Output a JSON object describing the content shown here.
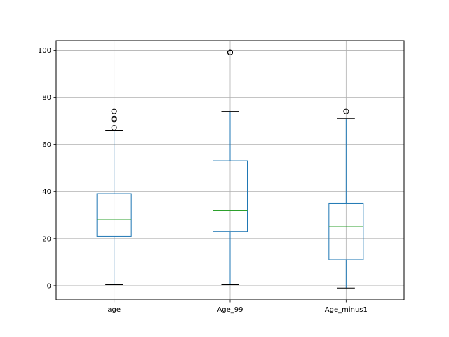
{
  "chart_data": {
    "type": "box",
    "title": "",
    "xlabel": "",
    "ylabel": "",
    "categories": [
      "age",
      "Age_99",
      "Age_minus1"
    ],
    "ylim": [
      -6,
      104
    ],
    "yticks": [
      0,
      20,
      40,
      60,
      80,
      100
    ],
    "grid": true,
    "boxes": [
      {
        "name": "age",
        "whisker_low": 0.4,
        "q1": 21,
        "median": 28,
        "q3": 39,
        "whisker_high": 66,
        "outliers": [
          67,
          70.5,
          71,
          74
        ]
      },
      {
        "name": "Age_99",
        "whisker_low": 0.4,
        "q1": 23,
        "median": 32,
        "q3": 53,
        "whisker_high": 74,
        "outliers": [
          99,
          99,
          99,
          99
        ]
      },
      {
        "name": "Age_minus1",
        "whisker_low": -1,
        "q1": 11,
        "median": 25,
        "q3": 35,
        "whisker_high": 71,
        "outliers": [
          74
        ]
      }
    ],
    "colors": {
      "box": "#1f77b4",
      "median": "#2ca02c",
      "whisker_cap": "#000000",
      "outlier": "#000000",
      "grid": "#b0b0b0"
    }
  }
}
